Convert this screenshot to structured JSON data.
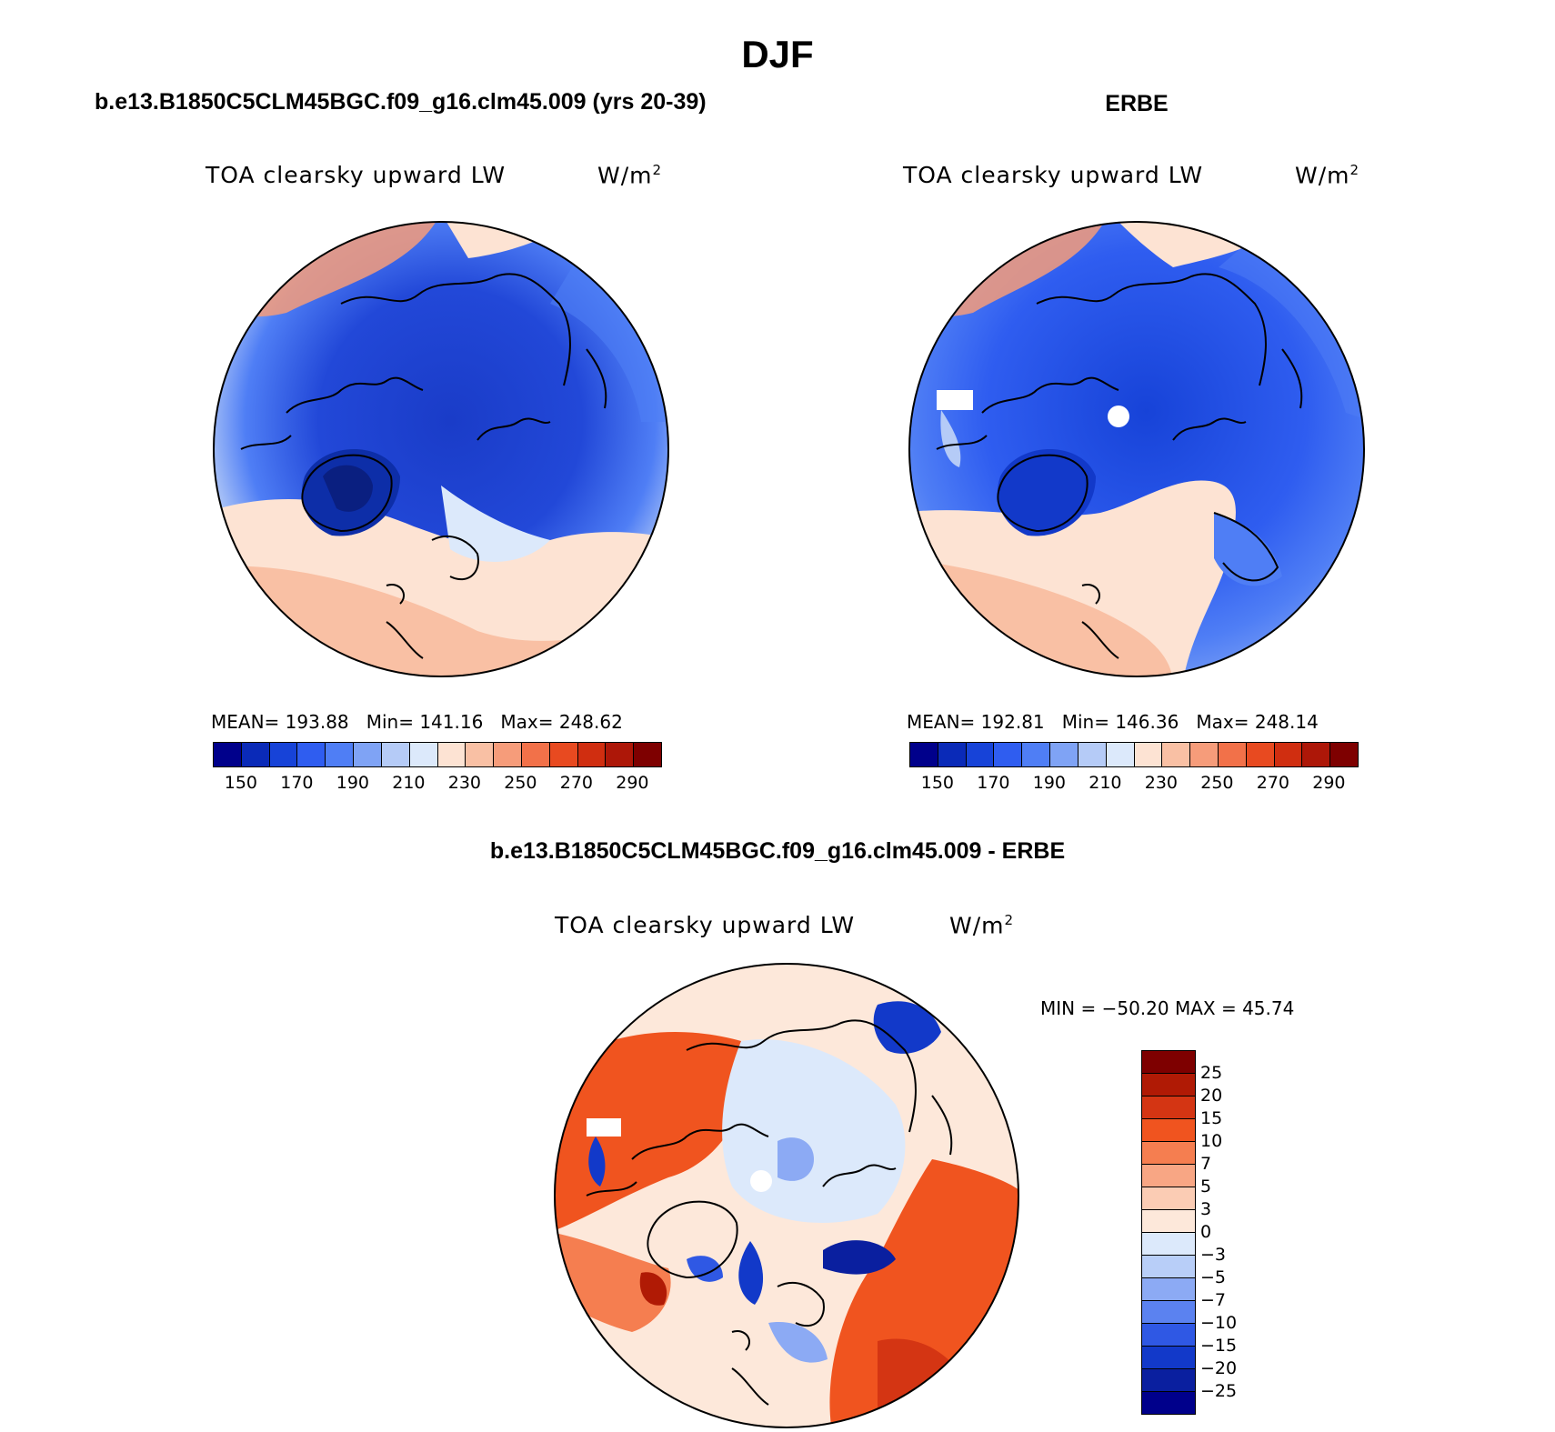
{
  "figure": {
    "season": "DJF"
  },
  "panels": {
    "model": {
      "title": "b.e13.B1850C5CLM45BGC.f09_g16.clm45.009 (yrs 20-39)",
      "variable": "TOA clearsky upward LW",
      "units_base": "W/m",
      "units_exp": "2",
      "stats": {
        "mean_label": "MEAN=",
        "mean": "193.88",
        "min_label": "Min=",
        "min": "141.16",
        "max_label": "Max=",
        "max": "248.62"
      }
    },
    "obs": {
      "title": "ERBE",
      "variable": "TOA clearsky upward LW",
      "units_base": "W/m",
      "units_exp": "2",
      "stats": {
        "mean_label": "MEAN=",
        "mean": "192.81",
        "min_label": "Min=",
        "min": "146.36",
        "max_label": "Max=",
        "max": "248.14"
      }
    },
    "diff": {
      "title": "b.e13.B1850C5CLM45BGC.f09_g16.clm45.009 - ERBE",
      "variable": "TOA clearsky upward LW",
      "units_base": "W/m",
      "units_exp": "2",
      "minmax_text": "MIN = −50.20 MAX =  45.74"
    }
  },
  "colorbar_abs": {
    "ticks": [
      "150",
      "170",
      "190",
      "210",
      "230",
      "250",
      "270",
      "290"
    ],
    "colors": [
      "#00008b",
      "#0a2ab8",
      "#1743d8",
      "#2f5df0",
      "#4f7ef5",
      "#7fa3f5",
      "#b5cbf7",
      "#dce9fb",
      "#fde3d3",
      "#f9c0a4",
      "#f69c7a",
      "#f27149",
      "#e84a20",
      "#d02e10",
      "#ad1708",
      "#7e0000"
    ]
  },
  "colorbar_diff": {
    "ticks": [
      "25",
      "20",
      "15",
      "10",
      "7",
      "5",
      "3",
      "0",
      "−3",
      "−5",
      "−7",
      "−10",
      "−15",
      "−20",
      "−25"
    ],
    "colors": [
      "#7e0000",
      "#b01a05",
      "#d43513",
      "#f0541f",
      "#f57e50",
      "#f8a684",
      "#fbccb4",
      "#fde8da",
      "#dce9fb",
      "#b8cef8",
      "#8caaf4",
      "#5b82f0",
      "#2f58e4",
      "#1239c9",
      "#0a1f9f",
      "#00008b"
    ]
  }
}
